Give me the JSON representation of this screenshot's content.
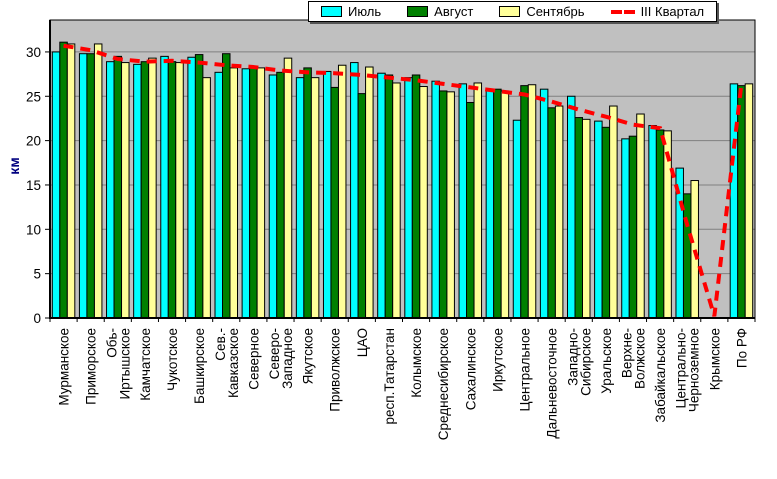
{
  "chart_data": {
    "type": "bar",
    "title": "",
    "xlabel": "",
    "ylabel": "км",
    "ylim": [
      0,
      33.6
    ],
    "yticks": [
      0,
      5,
      10,
      15,
      20,
      25,
      30
    ],
    "grid": true,
    "plot_bg": "#C0C0C0",
    "grid_color": "#808080",
    "legend_position": "top-center",
    "categories": [
      "Мурманское",
      "Приморское",
      "Обь-\nИртышское",
      "Камчатское",
      "Чукотское",
      "Башкирское",
      "Сев.-\nКавказское",
      "Северное",
      "Северо-\nЗападное",
      "Якутское",
      "Приволжское",
      "ЦАО",
      "респ.Татарстан",
      "Колымское",
      "Среднесибирское",
      "Сахалинское",
      "Иркутское",
      "Центральное",
      "Дальневосточное",
      "Западно-\nСибирское",
      "Уральское",
      "Верхне-\nВолжское",
      "Забайкальское",
      "Центрально-\nЧерноземное",
      "Крымское",
      "По РФ"
    ],
    "series": [
      {
        "name": "Июль",
        "color": "#00FFFF",
        "values": [
          30.0,
          29.8,
          28.9,
          28.6,
          29.5,
          29.4,
          27.7,
          28.1,
          27.4,
          27.1,
          27.8,
          28.8,
          27.6,
          27.1,
          26.7,
          26.4,
          25.7,
          22.3,
          25.8,
          25.0,
          22.2,
          20.2,
          21.7,
          16.9,
          null,
          26.4
        ]
      },
      {
        "name": "Август",
        "color": "#008000",
        "values": [
          31.1,
          29.8,
          29.5,
          28.9,
          28.9,
          29.7,
          29.8,
          28.3,
          27.7,
          28.2,
          26.0,
          25.3,
          27.4,
          27.4,
          25.6,
          24.3,
          25.8,
          26.2,
          23.7,
          22.6,
          21.5,
          20.5,
          21.2,
          14.0,
          null,
          26.2
        ]
      },
      {
        "name": "Сентябрь",
        "color": "#FFFF99",
        "values": [
          30.9,
          30.9,
          28.8,
          29.3,
          28.8,
          27.1,
          28.2,
          28.2,
          29.3,
          27.1,
          28.5,
          28.3,
          26.5,
          26.1,
          25.5,
          26.5,
          25.6,
          26.3,
          23.9,
          22.4,
          23.9,
          23.0,
          21.1,
          15.5,
          null,
          26.4
        ]
      }
    ],
    "line_series": {
      "name": "III Квартал",
      "color": "#FF0000",
      "style": "dashed",
      "values": [
        30.7,
        30.2,
        29.2,
        28.9,
        29.0,
        28.8,
        28.5,
        28.3,
        27.9,
        27.7,
        27.6,
        27.4,
        27.1,
        26.8,
        26.4,
        26.0,
        25.6,
        25.2,
        24.4,
        23.5,
        22.7,
        21.8,
        21.4,
        10.5,
        0.2,
        26.4
      ]
    }
  }
}
